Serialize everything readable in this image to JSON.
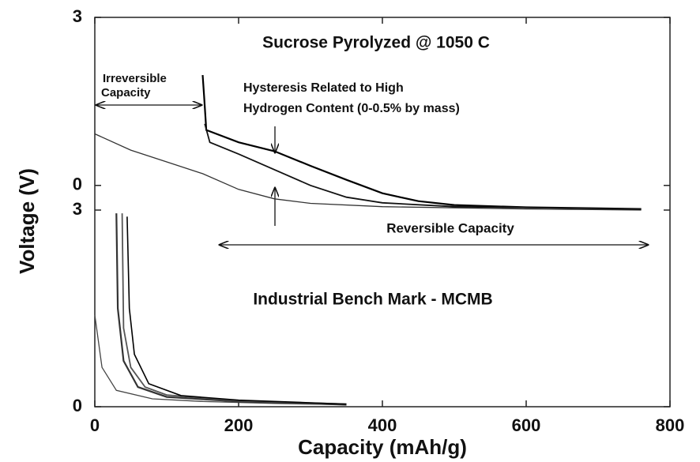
{
  "chart_data": [
    {
      "type": "line",
      "title": "Sucrose Pyrolyzed @ 1050 C",
      "ylabel": "Voltage (V)",
      "xlim": [
        0,
        800
      ],
      "ylim": [
        -0.44,
        3
      ],
      "yticks": [
        0,
        3
      ],
      "annotations": [
        {
          "lines": [
            "Irreversible",
            "Capacity"
          ]
        },
        {
          "lines": [
            "Hysteresis Related to High",
            "Hydrogen Content (0-0.5% by mass)"
          ]
        },
        {
          "lines": [
            "Reversible Capacity"
          ]
        }
      ],
      "series": [
        {
          "color": "#333333",
          "x": [
            0,
            50,
            100,
            150,
            200,
            250,
            300,
            400,
            600,
            760
          ],
          "values": [
            0.92,
            0.63,
            0.42,
            0.21,
            -0.07,
            -0.24,
            -0.32,
            -0.38,
            -0.42,
            -0.44
          ]
        },
        {
          "color": "#000000",
          "x": [
            150,
            152,
            155,
            200,
            250,
            300,
            350,
            400,
            450,
            500,
            600,
            760
          ],
          "values": [
            1.97,
            1.6,
            0.99,
            0.77,
            0.61,
            0.35,
            0.1,
            -0.14,
            -0.28,
            -0.35,
            -0.39,
            -0.42
          ]
        },
        {
          "color": "#111111",
          "x": [
            153,
            160,
            200,
            250,
            300,
            350,
            400,
            500,
            760
          ],
          "values": [
            1.1,
            0.77,
            0.56,
            0.28,
            0,
            -0.21,
            -0.31,
            -0.38,
            -0.42
          ]
        }
      ]
    },
    {
      "type": "line",
      "title": "Industrial Bench Mark - MCMB",
      "xlabel": "Capacity (mAh/g)",
      "xlim": [
        0,
        800
      ],
      "xticks": [
        0,
        200,
        400,
        600,
        800
      ],
      "ylim": [
        0,
        3
      ],
      "yticks": [
        0,
        3
      ],
      "series": [
        {
          "color": "#444444",
          "x": [
            0,
            10,
            30,
            80,
            150,
            250,
            350
          ],
          "values": [
            1.4,
            0.6,
            0.25,
            0.12,
            0.08,
            0.05,
            0.03
          ]
        },
        {
          "color": "#333333",
          "x": [
            30,
            32,
            40,
            60,
            100,
            200,
            300,
            350
          ],
          "values": [
            2.95,
            1.5,
            0.7,
            0.3,
            0.15,
            0.08,
            0.05,
            0.03
          ]
        },
        {
          "color": "#555555",
          "x": [
            38,
            40,
            50,
            70,
            100,
            200,
            350
          ],
          "values": [
            2.95,
            1.2,
            0.6,
            0.3,
            0.18,
            0.09,
            0.04
          ]
        },
        {
          "color": "#000000",
          "x": [
            45,
            48,
            55,
            75,
            120,
            200,
            300,
            350
          ],
          "values": [
            2.9,
            1.5,
            0.8,
            0.35,
            0.17,
            0.1,
            0.06,
            0.04
          ]
        }
      ]
    }
  ]
}
